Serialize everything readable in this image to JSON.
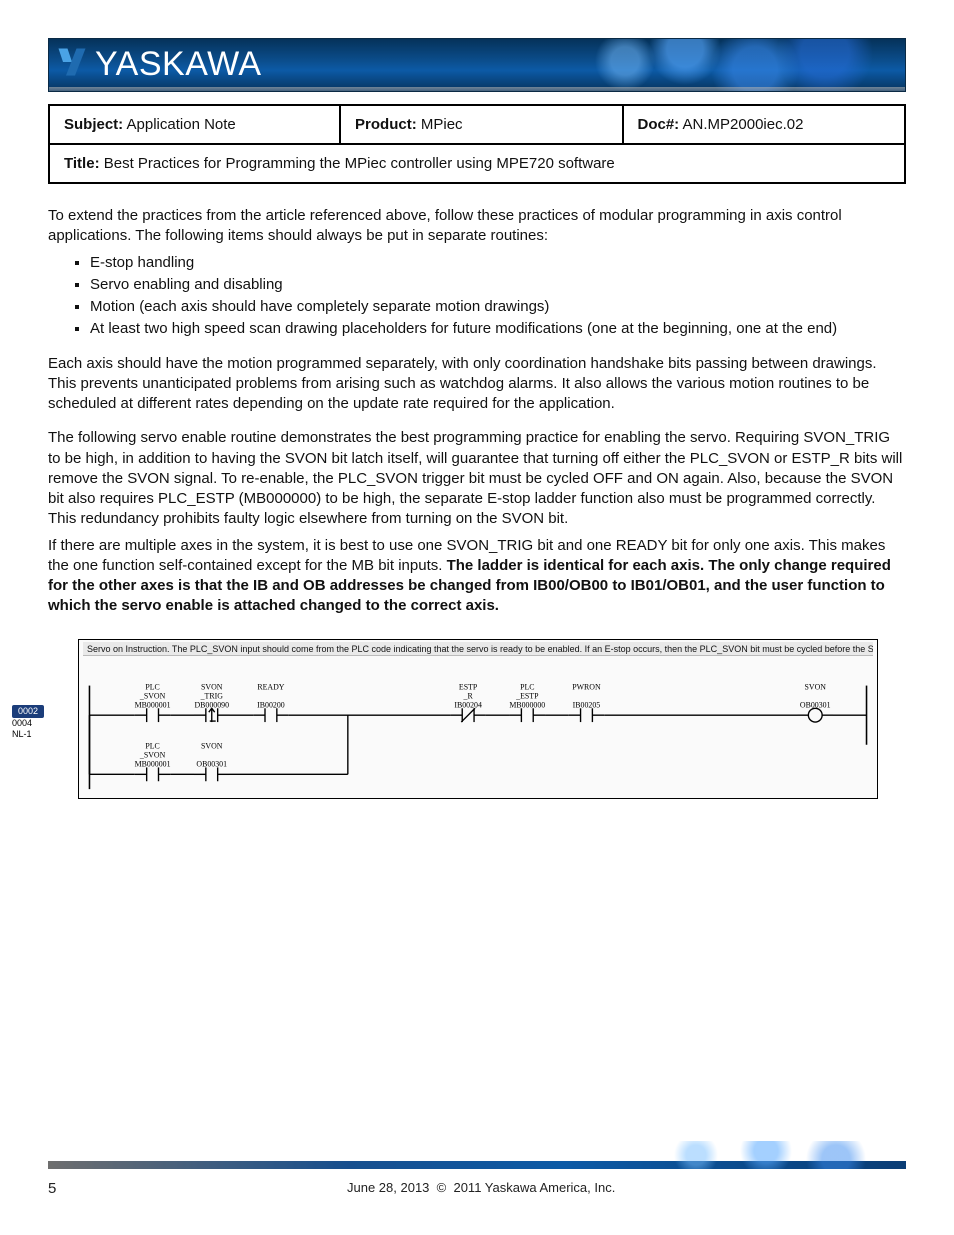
{
  "banner": {
    "brand": "YASKAWA"
  },
  "info": {
    "subject_label": "Subject:",
    "subject_value": "Application Note",
    "product_label": "Product:",
    "product_value": "MPiec",
    "docnum_label": "Doc#:",
    "docnum_value": "AN.MP2000iec.02",
    "title_label": "Title:",
    "title_value": "Best Practices for Programming the MPiec controller using MPE720 software"
  },
  "body": {
    "p_intro_prefix": "To extend the practices from the article referenced above, follow these practices of modular programming in axis control applications.  The following items should always be put in separate routines:",
    "items": [
      "E-stop handling",
      "Servo enabling and disabling",
      "Motion (each axis should have completely separate motion drawings)",
      "At least two high speed scan drawing placeholders for future modifications (one at the beginning, one at the end)"
    ],
    "p_motion_group": "Each axis should have the motion programmed separately, with only coordination handshake bits passing between drawings.  This prevents unanticipated problems from arising such as watchdog alarms.  It also allows the various motion routines to be scheduled at different rates depending on the update rate required for the application.",
    "p_enable_rules": "The following servo enable routine demonstrates the best programming practice for enabling the servo.  Requiring SVON_TRIG to be high, in addition to having the SVON bit latch itself, will guarantee that turning off either the PLC_SVON or ESTP_R bits will remove the SVON signal.  To re-enable, the PLC_SVON trigger bit must be cycled OFF and ON again.  Also, because the SVON bit also requires PLC_ESTP (MB000000) to be high, the separate E-stop ladder function also must be programmed correctly.  This redundancy prohibits faulty logic elsewhere from turning on the SVON bit.",
    "p_fig_prefix": "If there are multiple axes in the system, it is best to use one SVON_TRIG bit and one READY bit for only one axis.  This makes the one function self-contained except for the MB bit inputs.",
    "p_fig_bold": "  The ladder is identical for each axis.  The only change required for the other axes is that the IB and OB addresses be changed from IB00/OB00 to IB01/OB01, and the user function to which the servo enable is attached changed to the correct axis."
  },
  "ladder": {
    "title": "Servo on Instruction.  The PLC_SVON input should come from the PLC code indicating that the servo is ready to be enabled.  If an E-stop occurs, then the PLC_SVON bit must be cycled before the SVON will",
    "rung_badge": {
      "num": "0002",
      "sub1": "0004",
      "sub2": "NL-1"
    },
    "row1": [
      {
        "sym": "PLC",
        "sub": "_SVON",
        "addr": "MB000001",
        "el": "NO"
      },
      {
        "sym": "SVON",
        "sub": "_TRIG",
        "addr": "DB000090",
        "el": "P"
      },
      {
        "sym": "READY",
        "sub": "",
        "addr": "IB00200",
        "el": "NO"
      },
      null,
      {
        "sym": "ESTP",
        "sub": "_R",
        "addr": "IB00204",
        "el": "NC"
      },
      {
        "sym": "PLC",
        "sub": "_ESTP",
        "addr": "MB000000",
        "el": "NO"
      },
      {
        "sym": "PWRON",
        "sub": "",
        "addr": "IB00205",
        "el": "NO"
      }
    ],
    "coil": {
      "sym": "SVON",
      "addr": "OB00301"
    },
    "row2": [
      {
        "sym": "PLC",
        "sub": "_SVON",
        "addr": "MB000001",
        "el": "NO"
      },
      {
        "sym": "SVON",
        "sub": "",
        "addr": "OB00301",
        "el": "NO"
      }
    ],
    "style": {
      "line_color": "#000000",
      "text_color": "#000000",
      "badge_bg": "#1b3d7a",
      "badge_fg": "#ffffff",
      "label_fontsize": 8,
      "contact_stroke": 1.4,
      "rail_stroke": 1.6
    }
  },
  "footer": {
    "page": "5",
    "left": "June 28, 2013",
    "right": "2011 Yaskawa America, Inc.",
    "copy_symbol": "©"
  }
}
